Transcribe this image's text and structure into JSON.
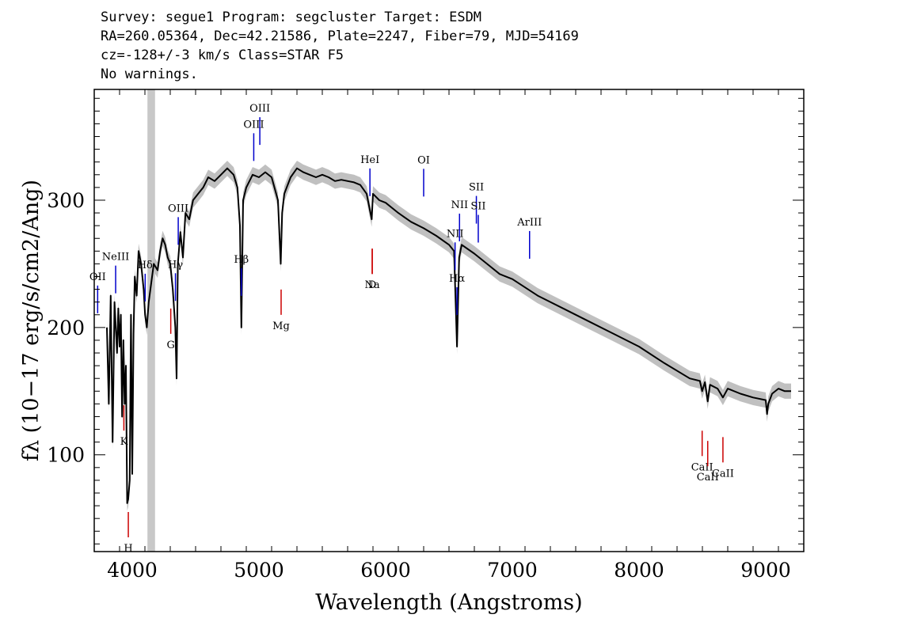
{
  "header": {
    "line1": "Survey: segue1 Program: segcluster Target: ESDM",
    "line2": "RA=260.05364, Dec=42.21586, Plate=2247, Fiber=79, MJD=54169",
    "line3": "cz=-128+/-3 km/s Class=STAR F5",
    "line4": "No warnings."
  },
  "colors": {
    "flux": "#000000",
    "error_band": "#c0c0c0",
    "emission": "#0000cc",
    "absorption": "#cc0000",
    "masked_band": "#c8c8c8"
  },
  "chart_data": {
    "type": "line",
    "xlabel": "Wavelength (Angstroms)",
    "ylabel": "fλ (10−17 erg/s/cm2/Ang)",
    "xlim": [
      3700,
      9300
    ],
    "ylim": [
      24,
      387
    ],
    "xticks": [
      4000,
      5000,
      6000,
      7000,
      8000,
      9000
    ],
    "yticks": [
      100,
      200,
      300
    ],
    "masked_region": [
      4120,
      4180
    ],
    "series": [
      {
        "x": [
          3800,
          3815,
          3830,
          3845,
          3860,
          3870,
          3880,
          3890,
          3900,
          3910,
          3920,
          3930,
          3940,
          3950,
          3960,
          3968,
          3980,
          3990,
          4000,
          4010,
          4020,
          4035,
          4050,
          4070,
          4090,
          4101,
          4115,
          4130,
          4150,
          4170,
          4200,
          4220,
          4240,
          4260,
          4280,
          4300,
          4320,
          4340,
          4350,
          4360,
          4380,
          4400,
          4420,
          4450,
          4480,
          4520,
          4560,
          4600,
          4650,
          4700,
          4750,
          4800,
          4830,
          4850,
          4861,
          4875,
          4900,
          4950,
          5000,
          5050,
          5100,
          5150,
          5172,
          5183,
          5200,
          5250,
          5300,
          5350,
          5400,
          5450,
          5500,
          5550,
          5600,
          5650,
          5700,
          5750,
          5800,
          5850,
          5890,
          5900,
          5950,
          6000,
          6100,
          6200,
          6300,
          6400,
          6500,
          6540,
          6563,
          6580,
          6600,
          6700,
          6800,
          6900,
          7000,
          7200,
          7400,
          7600,
          7800,
          8000,
          8200,
          8400,
          8480,
          8498,
          8520,
          8542,
          8560,
          8620,
          8662,
          8700,
          8800,
          8900,
          9000,
          9010,
          9020,
          9050,
          9100,
          9150,
          9200
        ],
        "values": [
          200,
          140,
          225,
          110,
          220,
          200,
          180,
          215,
          185,
          210,
          130,
          190,
          140,
          170,
          62,
          65,
          80,
          210,
          85,
          195,
          240,
          225,
          260,
          250,
          230,
          210,
          200,
          220,
          235,
          250,
          245,
          260,
          270,
          265,
          255,
          250,
          230,
          200,
          160,
          250,
          275,
          255,
          290,
          285,
          300,
          305,
          310,
          318,
          315,
          320,
          325,
          320,
          310,
          280,
          200,
          300,
          310,
          320,
          318,
          322,
          318,
          300,
          250,
          290,
          305,
          318,
          325,
          322,
          320,
          318,
          320,
          318,
          315,
          316,
          315,
          314,
          312,
          305,
          285,
          305,
          300,
          298,
          290,
          283,
          278,
          272,
          265,
          260,
          185,
          255,
          265,
          258,
          250,
          242,
          238,
          225,
          215,
          205,
          195,
          185,
          172,
          160,
          158,
          150,
          157,
          142,
          155,
          152,
          145,
          152,
          148,
          145,
          143,
          132,
          140,
          148,
          152,
          150,
          150
        ]
      }
    ],
    "emission_lines": [
      {
        "label": "OII",
        "wave": 3727
      },
      {
        "label": "NeIII",
        "wave": 3869
      },
      {
        "label": "Hδ",
        "wave": 4102
      },
      {
        "label": "Hγ",
        "wave": 4341
      },
      {
        "label": "OIII",
        "wave": 4363
      },
      {
        "label": "Hβ",
        "wave": 4861
      },
      {
        "label": "OIII",
        "wave": 4959
      },
      {
        "label": "OIII",
        "wave": 5007
      },
      {
        "label": "HeI",
        "wave": 5876
      },
      {
        "label": "OI",
        "wave": 6300
      },
      {
        "label": "NII",
        "wave": 6548
      },
      {
        "label": "Hα",
        "wave": 6563
      },
      {
        "label": "NII",
        "wave": 6583
      },
      {
        "label": "SII",
        "wave": 6716
      },
      {
        "label": "SII",
        "wave": 6731
      },
      {
        "label": "ArIII",
        "wave": 7136
      }
    ],
    "absorption_lines": [
      {
        "label": "K",
        "wave": 3934
      },
      {
        "label": "H",
        "wave": 3969
      },
      {
        "label": "G",
        "wave": 4304
      },
      {
        "label": "Mg",
        "wave": 5175
      },
      {
        "label": "Na",
        "wave": 5894
      },
      {
        "label": "D",
        "wave": 5894
      },
      {
        "label": "CaII",
        "wave": 8498
      },
      {
        "label": "CaII",
        "wave": 8542
      },
      {
        "label": "CaII",
        "wave": 8662
      }
    ]
  }
}
